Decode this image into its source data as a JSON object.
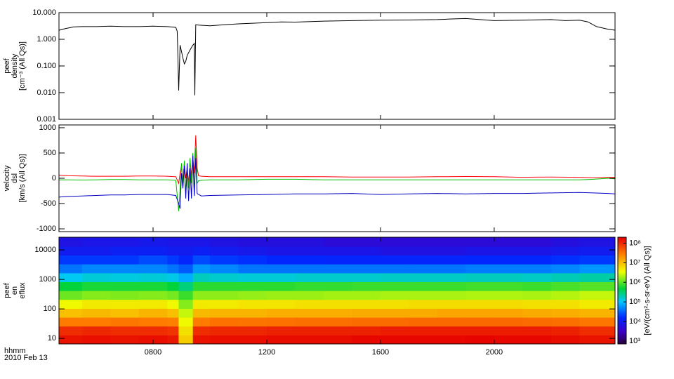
{
  "chart_data": [
    {
      "type": "line",
      "ylabel": [
        "peef",
        "density",
        "[cm⁻³ (All Qs)]"
      ],
      "xlim": [
        4.69,
        24.25
      ],
      "ylim": [
        0.001,
        10
      ],
      "log_y": true,
      "yticks": [
        {
          "value": 10,
          "label": "10.000"
        },
        {
          "value": 1,
          "label": "1.000"
        },
        {
          "value": 0.1,
          "label": "0.100"
        },
        {
          "value": 0.01,
          "label": "0.010"
        },
        {
          "value": 0.001,
          "label": "0.001"
        }
      ],
      "x": [
        4.7,
        4.9,
        5.2,
        5.5,
        6,
        6.5,
        7,
        7.5,
        8,
        8.5,
        8.8,
        8.85,
        8.87,
        8.9,
        8.95,
        9.0,
        9.05,
        9.1,
        9.15,
        9.2,
        9.3,
        9.4,
        9.45,
        9.47,
        9.5,
        9.6,
        10,
        10.5,
        11,
        11.5,
        12,
        12.5,
        13,
        14,
        15,
        16,
        17,
        18,
        18.5,
        19,
        19.5,
        20,
        21,
        22,
        22.5,
        23,
        23.3,
        23.6,
        24,
        24.25
      ],
      "series": [
        {
          "color": "#000000",
          "values": [
            2.2,
            2.5,
            2.9,
            3.0,
            3.0,
            3.1,
            3.0,
            3.0,
            3.1,
            3.0,
            2.8,
            2.0,
            0.3,
            0.012,
            0.6,
            0.35,
            0.2,
            0.12,
            0.15,
            0.25,
            0.4,
            0.6,
            0.7,
            0.008,
            3.5,
            3.4,
            3.2,
            3.5,
            3.8,
            4.0,
            4.2,
            4.5,
            4.4,
            4.8,
            5.0,
            5.2,
            5.3,
            5.5,
            5.8,
            6.0,
            5.5,
            5.0,
            5.2,
            5.5,
            5.0,
            5.2,
            4.5,
            3.0,
            2.4,
            2.2
          ]
        }
      ]
    },
    {
      "type": "line",
      "ylabel": [
        "velocity",
        "dsl",
        "[km/s (All Qs)]"
      ],
      "xlim": [
        4.69,
        24.25
      ],
      "ylim": [
        -1055,
        1055
      ],
      "log_y": false,
      "yticks": [
        1000,
        500,
        0,
        -500,
        -1000
      ],
      "x": [
        4.7,
        5,
        5.5,
        6,
        6.5,
        7,
        7.5,
        8,
        8.5,
        8.8,
        8.9,
        8.95,
        9.0,
        9.05,
        9.1,
        9.15,
        9.2,
        9.25,
        9.3,
        9.35,
        9.4,
        9.45,
        9.5,
        9.55,
        9.6,
        9.7,
        10,
        11,
        12,
        13,
        14,
        15,
        16,
        17,
        18,
        19,
        20,
        21,
        22,
        23,
        23.5,
        24,
        24.25
      ],
      "series": [
        {
          "color": "#ff0000",
          "values": [
            60,
            50,
            45,
            40,
            40,
            40,
            45,
            45,
            40,
            30,
            -100,
            100,
            250,
            -50,
            300,
            0,
            200,
            -100,
            350,
            50,
            400,
            100,
            850,
            200,
            50,
            40,
            30,
            30,
            30,
            30,
            30,
            25,
            25,
            25,
            30,
            35,
            30,
            20,
            25,
            20,
            10,
            20,
            20
          ]
        },
        {
          "color": "#00c000",
          "values": [
            -30,
            -30,
            -35,
            -30,
            -25,
            -25,
            -30,
            -30,
            -30,
            -40,
            -650,
            -200,
            300,
            -100,
            350,
            -300,
            200,
            -200,
            400,
            -100,
            500,
            -300,
            600,
            -100,
            -50,
            -40,
            -30,
            -30,
            -20,
            -20,
            -30,
            -30,
            -30,
            -30,
            -30,
            -30,
            -30,
            -30,
            -30,
            -30,
            -20,
            0,
            -10
          ]
        },
        {
          "color": "#0000c0",
          "values": [
            -370,
            -360,
            -350,
            -340,
            -330,
            -330,
            -320,
            -320,
            -320,
            -340,
            -500,
            -600,
            100,
            -200,
            250,
            -400,
            300,
            -450,
            200,
            -400,
            450,
            -350,
            400,
            -300,
            -320,
            -350,
            -340,
            -330,
            -320,
            -310,
            -310,
            -300,
            -320,
            -310,
            -300,
            -310,
            -300,
            -300,
            -290,
            -280,
            -290,
            -300,
            -310
          ]
        }
      ]
    },
    {
      "type": "heatmap",
      "ylabel": [
        "peef",
        "en",
        "eflux"
      ],
      "xlabel": [
        "hhmm",
        "2010 Feb 13"
      ],
      "xlim": [
        4.69,
        24.25
      ],
      "ylim": [
        6.5,
        27000
      ],
      "log_y": true,
      "xticks": [
        {
          "value": 8,
          "label": "0800"
        },
        {
          "value": 12,
          "label": "1200"
        },
        {
          "value": 16,
          "label": "1600"
        },
        {
          "value": 20,
          "label": "2000"
        }
      ],
      "yticks": [
        10,
        100,
        1000,
        10000
      ],
      "x_edges": [
        4.69,
        5.5,
        6.5,
        7.5,
        8.5,
        8.9,
        9.4,
        10,
        11,
        12,
        13,
        14,
        15,
        16,
        17,
        18,
        19,
        20,
        21,
        22,
        23,
        24.25
      ],
      "y_edges": [
        6.5,
        13,
        26,
        52,
        104,
        208,
        416,
        832,
        1660,
        3330,
        6660,
        13300,
        27000
      ],
      "z": [
        [
          150000000.0,
          100000000.0,
          30000000.0,
          10000000.0,
          4000000.0,
          1200000.0,
          500000.0,
          120000.0,
          40000.0,
          20000.0,
          10000.0,
          7000.0
        ],
        [
          160000000.0,
          110000000.0,
          30000000.0,
          11000000.0,
          5000000.0,
          1500000.0,
          600000.0,
          150000.0,
          50000.0,
          20000.0,
          10000.0,
          8000.0
        ],
        [
          150000000.0,
          100000000.0,
          32000000.0,
          10000000.0,
          5000000.0,
          1400000.0,
          600000.0,
          140000.0,
          50000.0,
          20000.0,
          12000.0,
          8000.0
        ],
        [
          160000000.0,
          100000000.0,
          30000000.0,
          12000000.0,
          5000000.0,
          1500000.0,
          600000.0,
          150000.0,
          50000.0,
          25000.0,
          12000.0,
          9000.0
        ],
        [
          140000000.0,
          90000000.0,
          28000000.0,
          10000000.0,
          4000000.0,
          1300000.0,
          500000.0,
          130000.0,
          40000.0,
          20000.0,
          10000.0,
          8000.0
        ],
        [
          8000000.0,
          6000000.0,
          4000000.0,
          2500000.0,
          1500000.0,
          800000.0,
          300000.0,
          80000.0,
          30000.0,
          15000.0,
          10000.0,
          8000.0
        ],
        [
          150000000.0,
          100000000.0,
          30000000.0,
          11000000.0,
          5000000.0,
          1600000.0,
          700000.0,
          180000.0,
          60000.0,
          25000.0,
          12000.0,
          8000.0
        ],
        [
          160000000.0,
          110000000.0,
          35000000.0,
          12000000.0,
          5000000.0,
          1600000.0,
          700000.0,
          160000.0,
          50000.0,
          20000.0,
          10000.0,
          7000.0
        ],
        [
          160000000.0,
          110000000.0,
          34000000.0,
          12000000.0,
          5500000.0,
          1700000.0,
          700000.0,
          150000.0,
          40000.0,
          18000.0,
          9000.0,
          6000.0
        ],
        [
          170000000.0,
          120000000.0,
          35000000.0,
          13000000.0,
          5500000.0,
          1800000.0,
          700000.0,
          150000.0,
          40000.0,
          16000.0,
          8000.0,
          6000.0
        ],
        [
          170000000.0,
          120000000.0,
          36000000.0,
          13000000.0,
          6000000.0,
          1800000.0,
          750000.0,
          160000.0,
          40000.0,
          16000.0,
          8000.0,
          6000.0
        ],
        [
          170000000.0,
          120000000.0,
          36000000.0,
          13000000.0,
          6000000.0,
          1900000.0,
          750000.0,
          160000.0,
          40000.0,
          15000.0,
          8000.0,
          5000.0
        ],
        [
          180000000.0,
          120000000.0,
          38000000.0,
          14000000.0,
          6000000.0,
          1900000.0,
          800000.0,
          160000.0,
          40000.0,
          15000.0,
          8000.0,
          5000.0
        ],
        [
          180000000.0,
          130000000.0,
          38000000.0,
          14000000.0,
          6000000.0,
          2000000.0,
          800000.0,
          170000.0,
          40000.0,
          15000.0,
          7000.0,
          5000.0
        ],
        [
          180000000.0,
          130000000.0,
          40000000.0,
          14000000.0,
          6500000.0,
          2000000.0,
          800000.0,
          170000.0,
          40000.0,
          15000.0,
          7000.0,
          5000.0
        ],
        [
          180000000.0,
          130000000.0,
          40000000.0,
          15000000.0,
          6500000.0,
          2000000.0,
          800000.0,
          170000.0,
          40000.0,
          15000.0,
          7000.0,
          5000.0
        ],
        [
          190000000.0,
          130000000.0,
          40000000.0,
          15000000.0,
          6500000.0,
          2100000.0,
          850000.0,
          180000.0,
          45000.0,
          16000.0,
          8000.0,
          5000.0
        ],
        [
          180000000.0,
          130000000.0,
          40000000.0,
          15000000.0,
          6500000.0,
          2100000.0,
          850000.0,
          180000.0,
          45000.0,
          16000.0,
          8000.0,
          5000.0
        ],
        [
          180000000.0,
          130000000.0,
          38000000.0,
          14000000.0,
          6000000.0,
          2000000.0,
          800000.0,
          170000.0,
          45000.0,
          16000.0,
          8000.0,
          5000.0
        ],
        [
          170000000.0,
          120000000.0,
          36000000.0,
          13000000.0,
          6000000.0,
          2200000.0,
          900000.0,
          190000.0,
          50000.0,
          18000.0,
          9000.0,
          6000.0
        ],
        [
          150000000.0,
          100000000.0,
          32000000.0,
          12000000.0,
          5000000.0,
          2500000.0,
          1000000.0,
          220000.0,
          60000.0,
          20000.0,
          10000.0,
          7000.0
        ]
      ],
      "clim": [
        720,
        200000000.0
      ],
      "cticks": [
        {
          "value": 1000,
          "label": "10³"
        },
        {
          "value": 10000,
          "label": "10⁴"
        },
        {
          "value": 100000,
          "label": "10⁵"
        },
        {
          "value": 1000000,
          "label": "10⁶"
        },
        {
          "value": 10000000,
          "label": "10⁷"
        },
        {
          "value": 100000000,
          "label": "10⁸"
        }
      ],
      "colorbar_label": "[eV/(cm²-s-sr-eV) (All Qs)]"
    }
  ]
}
